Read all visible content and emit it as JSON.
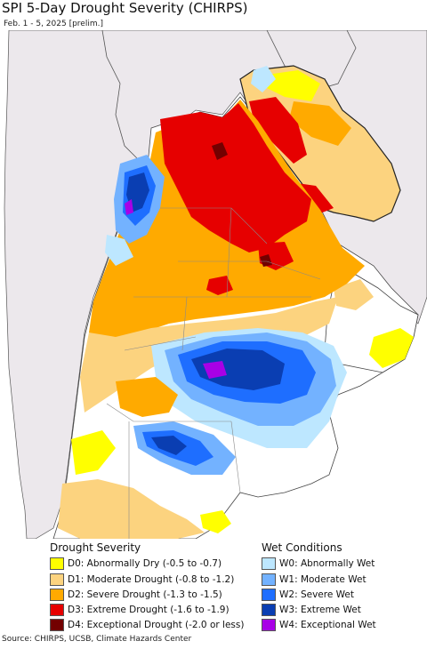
{
  "header": {
    "title": "SPI 5-Day Drought Severity (CHIRPS)",
    "subtitle": "Feb. 1 - 5, 2025 [prelim.]"
  },
  "colors": {
    "ocean": "#ffffff",
    "land_background": "#ece8ec",
    "normal": "#ffffff",
    "d0": "#ffff00",
    "d1": "#fcd37f",
    "d2": "#ffaa00",
    "d3": "#e60000",
    "d4": "#730000",
    "w0": "#bde7ff",
    "w1": "#73b2ff",
    "w2": "#1e6eff",
    "w3": "#0a3eb2",
    "w4": "#a800e6"
  },
  "legend": {
    "drought_title": "Drought Severity",
    "wet_title": "Wet Conditions",
    "drought_items": [
      {
        "label": "D0: Abnormally Dry (-0.5 to -0.7)",
        "color": "#ffff00"
      },
      {
        "label": "D1: Moderate Drought (-0.8 to -1.2)",
        "color": "#fcd37f"
      },
      {
        "label": "D2: Severe Drought (-1.3 to -1.5)",
        "color": "#ffaa00"
      },
      {
        "label": "D3: Extreme Drought (-1.6 to -1.9)",
        "color": "#e60000"
      },
      {
        "label": "D4: Exceptional Drought (-2.0 or less)",
        "color": "#730000"
      }
    ],
    "wet_items": [
      {
        "label": "W0: Abnormally Wet",
        "color": "#bde7ff"
      },
      {
        "label": "W1: Moderate Wet",
        "color": "#73b2ff"
      },
      {
        "label": "W2: Severe Wet",
        "color": "#1e6eff"
      },
      {
        "label": "W3: Extreme Wet",
        "color": "#0a3eb2"
      },
      {
        "label": "W4: Exceptional Wet",
        "color": "#a800e6"
      }
    ]
  },
  "footer": {
    "source": "Source: CHIRPS, UCSB, Climate Hazards Center"
  }
}
